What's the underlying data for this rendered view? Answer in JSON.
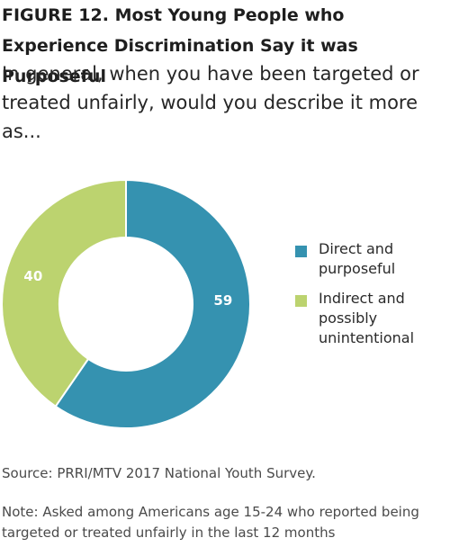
{
  "header": {
    "title": "FIGURE 12. Most Young People who Experience Discrimination Say it was Purposeful",
    "subtitle": "In general, when you have been targeted or treated unfairly, would you describe it more as..."
  },
  "chart_data": {
    "type": "pie",
    "donut": true,
    "slices": [
      {
        "label": "Direct and purposeful",
        "value": 59,
        "color": "#3592b0"
      },
      {
        "label": "Indirect and possibly unintentional",
        "value": 40,
        "color": "#bcd36f"
      }
    ],
    "legend_position": "right"
  },
  "footer": {
    "source": "Source: PRRI/MTV 2017 National Youth Survey.",
    "note": "Note: Asked among Americans age 15-24 who reported being targeted or treated unfairly in the last 12 months"
  }
}
